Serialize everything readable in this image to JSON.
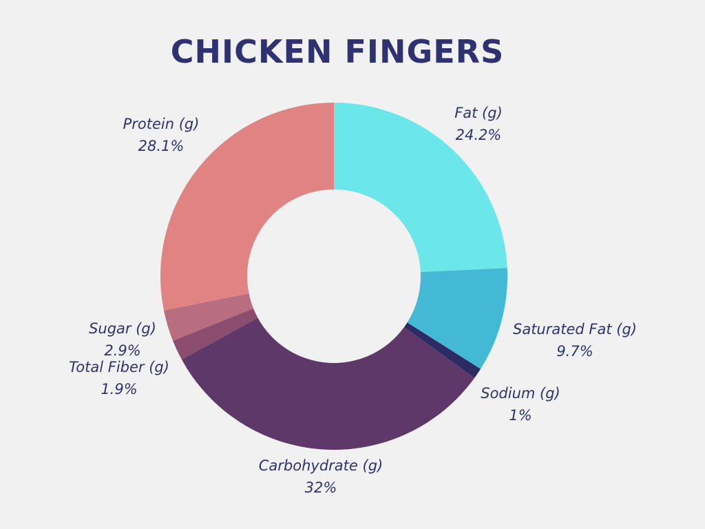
{
  "chart_data": {
    "type": "pie",
    "variant": "donut",
    "title": "CHICKEN FINGERS",
    "slices": [
      {
        "label": "Fat (g)",
        "value": 24.2,
        "display": "24.2%",
        "color": "#6be6e9"
      },
      {
        "label": "Saturated Fat (g)",
        "value": 9.7,
        "display": "9.7%",
        "color": "#44b9d5"
      },
      {
        "label": "Sodium (g)",
        "value": 1,
        "display": "1%",
        "color": "#2b2c66"
      },
      {
        "label": "Carbohydrate (g)",
        "value": 32,
        "display": "32%",
        "color": "#5d3868"
      },
      {
        "label": "Total Fiber (g)",
        "value": 1.9,
        "display": "1.9%",
        "color": "#8a4d6d"
      },
      {
        "label": "Sugar (g)",
        "value": 2.9,
        "display": "2.9%",
        "color": "#b86d80"
      },
      {
        "label": "Protein (g)",
        "value": 28.1,
        "display": "28.1%",
        "color": "#e18383"
      }
    ],
    "start_angle": "12 o'clock",
    "direction": "clockwise",
    "legend": "none"
  }
}
